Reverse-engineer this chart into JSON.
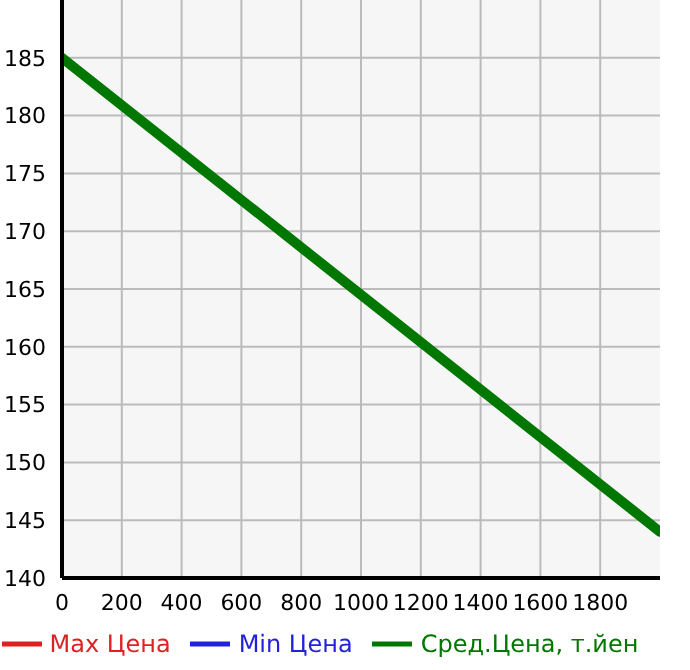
{
  "chart_data": {
    "type": "line",
    "x": [
      0,
      2000
    ],
    "series": [
      {
        "name": "Max Цена",
        "color": "#dd2222",
        "values": [
          null,
          null
        ]
      },
      {
        "name": "Min Цена",
        "color": "#2222dd",
        "values": [
          null,
          null
        ]
      },
      {
        "name": "Сред.Цена, т.йен",
        "color": "#007700",
        "values": [
          185,
          144
        ]
      }
    ],
    "xlim": [
      0,
      2000
    ],
    "xticks": [
      0,
      200,
      400,
      600,
      800,
      1000,
      1200,
      1400,
      1600,
      1800
    ],
    "ylim": [
      140,
      190
    ],
    "yticks": [
      140,
      145,
      150,
      155,
      160,
      165,
      170,
      175,
      180,
      185
    ],
    "grid": true,
    "legend": "bottom",
    "marker": "none",
    "line_style": "solid"
  }
}
